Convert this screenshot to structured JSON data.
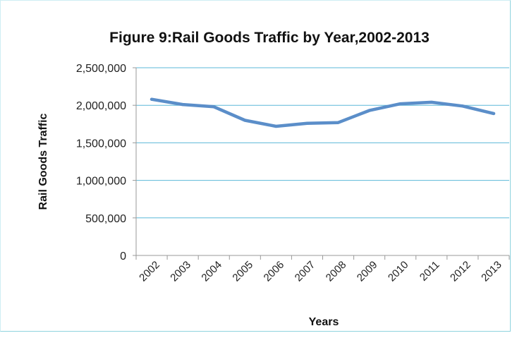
{
  "chart_data": {
    "type": "line",
    "title": "Figure 9:Rail Goods Traffic by Year,2002-2013",
    "xlabel": "Years",
    "ylabel": "Rail Goods Traffic",
    "categories": [
      "2002",
      "2003",
      "2004",
      "2005",
      "2006",
      "2007",
      "2008",
      "2009",
      "2010",
      "2011",
      "2012",
      "2013"
    ],
    "series": [
      {
        "values": [
          2080000,
          2010000,
          1980000,
          1800000,
          1720000,
          1760000,
          1770000,
          1930000,
          2020000,
          2040000,
          1990000,
          1890000
        ]
      }
    ],
    "ylim": [
      0,
      2500000
    ],
    "yticks": [
      "0",
      "500,000",
      "1,000,000",
      "1,500,000",
      "2,000,000",
      "2,500,000"
    ],
    "grid": true,
    "line_color": "#5b8ec9",
    "grid_color": "#5bb8d8"
  }
}
